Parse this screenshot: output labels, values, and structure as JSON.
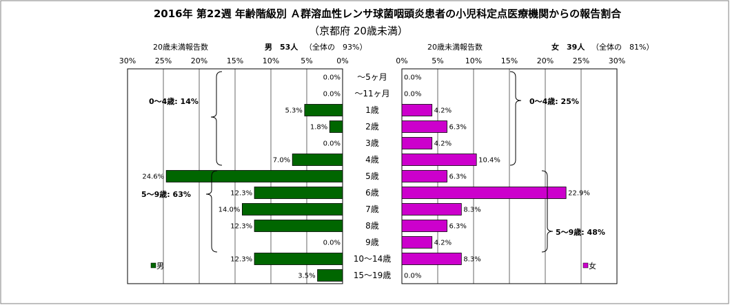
{
  "chart_data": {
    "type": "bar",
    "orientation": "horizontal",
    "layout": "butterfly",
    "title": "2016年 第22週 年齢階級別 Ａ群溶血性レンサ球菌咽頭炎患者の小児科定点医療機関からの報告割合",
    "subtitle": "（京都府 20歳未満）",
    "categories": [
      "～5ヶ月",
      "～11ヶ月",
      "1歳",
      "2歳",
      "3歳",
      "4歳",
      "5歳",
      "6歳",
      "7歳",
      "8歳",
      "9歳",
      "10～14歳",
      "15～19歳"
    ],
    "tick_labels": [
      "30%",
      "25%",
      "20%",
      "15%",
      "10%",
      "5%",
      "0%",
      "0%",
      "5%",
      "10%",
      "15%",
      "20%",
      "25%",
      "30%"
    ],
    "xlim": [
      0,
      30
    ],
    "grid": true,
    "series": [
      {
        "name": "男",
        "header_label": "20歳未満報告数",
        "header_stat": "男　53人",
        "header_note": "（全体の　93%）",
        "color": "#006600",
        "values": [
          0.0,
          0.0,
          5.3,
          1.8,
          0.0,
          7.0,
          24.6,
          12.3,
          14.0,
          12.3,
          0.0,
          12.3,
          3.5
        ],
        "value_labels": [
          "0.0%",
          "0.0%",
          "5.3%",
          "1.8%",
          "0.0%",
          "7.0%",
          "24.6%",
          "12.3%",
          "14.0%",
          "12.3%",
          "0.0%",
          "12.3%",
          "3.5%"
        ],
        "annotations": [
          "0～4歳: 14%",
          "5～9歳: 63%"
        ]
      },
      {
        "name": "女",
        "header_label": "20歳未満報告数",
        "header_stat": "女　39人",
        "header_note": "（全体の　81%）",
        "color": "#cc00cc",
        "values": [
          0.0,
          0.0,
          4.2,
          6.3,
          4.2,
          10.4,
          6.3,
          22.9,
          8.3,
          6.3,
          4.2,
          8.3,
          0.0
        ],
        "value_labels": [
          "0.0%",
          "0.0%",
          "4.2%",
          "6.3%",
          "4.2%",
          "10.4%",
          "6.3%",
          "22.9%",
          "8.3%",
          "6.3%",
          "4.2%",
          "8.3%",
          "0.0%"
        ],
        "annotations": [
          "0～4歳: 25%",
          "5～9歳: 48%"
        ]
      }
    ],
    "legend": [
      "男",
      "女"
    ],
    "legend_placement": "bottom-inside"
  }
}
